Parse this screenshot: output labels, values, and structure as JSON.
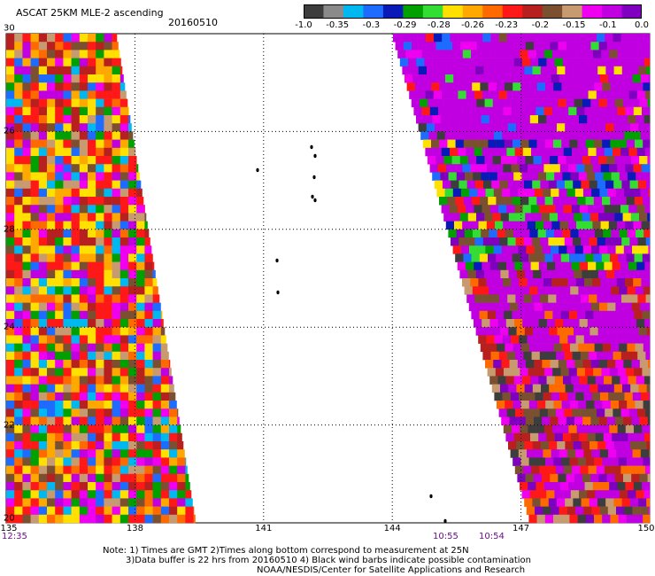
{
  "header": {
    "title": "ASCAT 25KM MLE-2 ascending",
    "date": "20160510"
  },
  "colorbar": {
    "colors": [
      "#3d3d3d",
      "#8a8a8a",
      "#00b8f0",
      "#1e6cff",
      "#0a1ab8",
      "#00a000",
      "#33dd33",
      "#ffe000",
      "#ffa800",
      "#ff6a00",
      "#ff1818",
      "#b82020",
      "#7a5030",
      "#c89a70",
      "#f000f0",
      "#c000e0",
      "#8000c0"
    ],
    "labels": [
      "-1.0",
      "-0.35",
      "-0.3",
      "-0.29",
      "-0.28",
      "-0.26",
      "-0.23",
      "-0.2",
      "-0.15",
      "-0.1",
      "0.0"
    ]
  },
  "map": {
    "lon_ticks": [
      "135",
      "138",
      "141",
      "144",
      "147",
      "150"
    ],
    "lat_ticks": [
      "30",
      "26",
      "28",
      "24",
      "22",
      "20"
    ],
    "lon_range": [
      135,
      150
    ],
    "lat_range": [
      20,
      30
    ]
  },
  "times": {
    "left": "12:35",
    "right_a": "10:55",
    "right_b": "10:54"
  },
  "notes": {
    "line1": "Note: 1) Times are GMT 2)Times along bottom correspond to measurement at 25N",
    "line2": "3)Data buffer is 22 hrs from 20160510 4) Black wind barbs indicate possible contamination",
    "line3": "NOAA/NESDIS/Center for Satellite Applications and Research"
  }
}
